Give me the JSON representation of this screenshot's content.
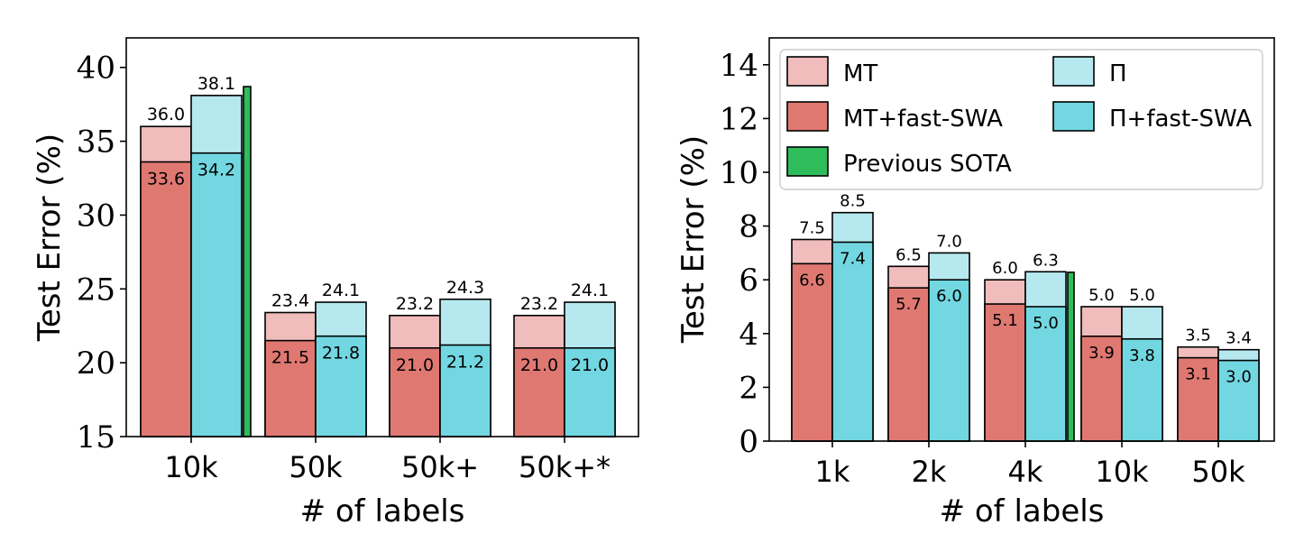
{
  "chart_data": [
    {
      "type": "bar",
      "title": "",
      "xlabel": "# of labels",
      "ylabel": "Test Error (%)",
      "ylim": [
        15,
        42
      ],
      "yticks": [
        15,
        20,
        25,
        30,
        35,
        40
      ],
      "categories": [
        "10k",
        "50k",
        "50k+",
        "50k+*"
      ],
      "series": [
        {
          "name": "MT",
          "values": [
            36.0,
            23.4,
            23.2,
            23.2
          ],
          "color": "#f0bcbc"
        },
        {
          "name": "MT+fast-SWA",
          "values": [
            33.6,
            21.5,
            21.0,
            21.0
          ],
          "color": "#e07872"
        },
        {
          "name": "Π",
          "values": [
            38.1,
            24.1,
            24.3,
            24.1
          ],
          "color": "#b6e9ef"
        },
        {
          "name": "Π+fast-SWA",
          "values": [
            34.2,
            21.8,
            21.2,
            21.0
          ],
          "color": "#72d7e1"
        },
        {
          "name": "Previous SOTA",
          "values": [
            38.7,
            null,
            null,
            null
          ],
          "color": "#2ebd5a"
        }
      ],
      "labels_top": {
        "MT": [
          "36.0",
          "23.4",
          "23.2",
          "23.2"
        ],
        "Π": [
          "38.1",
          "24.1",
          "24.3",
          "24.1"
        ]
      },
      "labels_inner": {
        "MT+fast-SWA": [
          "33.6",
          "21.5",
          "21.0",
          "21.0"
        ],
        "Π+fast-SWA": [
          "34.2",
          "21.8",
          "21.2",
          "21.0"
        ]
      },
      "legend": null,
      "grid": false
    },
    {
      "type": "bar",
      "title": "",
      "xlabel": "# of labels",
      "ylabel": "Test Error (%)",
      "ylim": [
        0,
        15
      ],
      "yticks": [
        0,
        2,
        4,
        6,
        8,
        10,
        12,
        14
      ],
      "categories": [
        "1k",
        "2k",
        "4k",
        "10k",
        "50k"
      ],
      "series": [
        {
          "name": "MT",
          "values": [
            7.5,
            6.5,
            6.0,
            5.0,
            3.5
          ],
          "color": "#f0bcbc"
        },
        {
          "name": "MT+fast-SWA",
          "values": [
            6.6,
            5.7,
            5.1,
            3.9,
            3.1
          ],
          "color": "#e07872"
        },
        {
          "name": "Π",
          "values": [
            8.5,
            7.0,
            6.3,
            5.0,
            3.4
          ],
          "color": "#b6e9ef"
        },
        {
          "name": "Π+fast-SWA",
          "values": [
            7.4,
            6.0,
            5.0,
            3.8,
            3.0
          ],
          "color": "#72d7e1"
        },
        {
          "name": "Previous SOTA",
          "values": [
            null,
            null,
            6.28,
            null,
            null
          ],
          "color": "#2ebd5a"
        }
      ],
      "labels_top": {
        "MT": [
          "7.5",
          "6.5",
          "6.0",
          "5.0",
          "3.5"
        ],
        "Π": [
          "8.5",
          "7.0",
          "6.3",
          "5.0",
          "3.4"
        ]
      },
      "labels_inner": {
        "MT+fast-SWA": [
          "6.6",
          "5.7",
          "5.1",
          "3.9",
          "3.1"
        ],
        "Π+fast-SWA": [
          "7.4",
          "6.0",
          "5.0",
          "3.8",
          "3.0"
        ]
      },
      "legend": {
        "placement": "top-left",
        "entries": [
          "MT",
          "MT+fast-SWA",
          "Previous SOTA",
          "Π",
          "Π+fast-SWA"
        ]
      },
      "grid": false
    }
  ]
}
